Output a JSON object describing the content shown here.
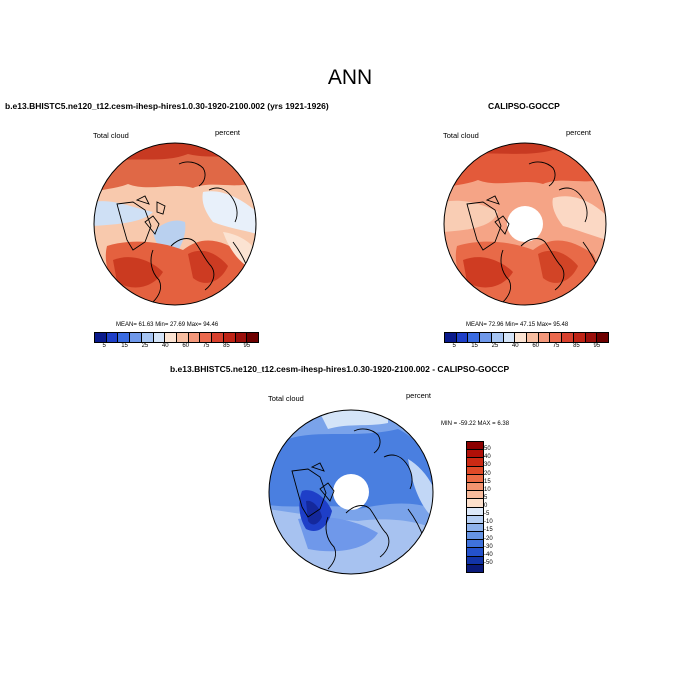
{
  "title": "ANN",
  "panel_left": {
    "header": "b.e13.BHISTC5.ne120_t12.cesm-ihesp-hires1.0.30-1920-2100.002 (yrs 1921-1926)",
    "left_label": "Total cloud",
    "right_label": "percent",
    "stats": "MEAN=  61.63  Min=  27.69  Max=  94.46"
  },
  "panel_right": {
    "header": "CALIPSO-GOCCP",
    "left_label": "Total cloud",
    "right_label": "percent",
    "stats": "MEAN=  72.96  Min=  47.15  Max=  95.48"
  },
  "panel_diff": {
    "header": "b.e13.BHISTC5.ne120_t12.cesm-ihesp-hires1.0.30-1920-2100.002 - CALIPSO-GOCCP",
    "left_label": "Total cloud",
    "right_label": "percent",
    "stats": "MIN = -59.22  MAX =   6.38"
  },
  "colorbar_fields": {
    "tick_labels": [
      "5",
      "15",
      "25",
      "40",
      "60",
      "75",
      "85",
      "95"
    ],
    "colors": [
      "#0a1a8c",
      "#1e3fc8",
      "#3a6be0",
      "#6f98ea",
      "#a6c4f2",
      "#d4e4f8",
      "#fbe3d2",
      "#f7bda0",
      "#f3977a",
      "#eb6a4e",
      "#d8402d",
      "#bf2416",
      "#9b0f0b",
      "#6e0000"
    ]
  },
  "colorbar_diff": {
    "tick_labels": [
      "50",
      "40",
      "30",
      "20",
      "15",
      "10",
      "5",
      "0",
      "-5",
      "-10",
      "-15",
      "-20",
      "-30",
      "-40",
      "-50"
    ],
    "colors": [
      "#8c0000",
      "#b01008",
      "#cc2a14",
      "#e04a28",
      "#ec6c46",
      "#f39470",
      "#f8bb9c",
      "#fde0cc",
      "#dde9fa",
      "#b6cff4",
      "#8eb2ec",
      "#6694e4",
      "#3f72dc",
      "#2452cc",
      "#1234a8",
      "#0a1a7a"
    ]
  }
}
